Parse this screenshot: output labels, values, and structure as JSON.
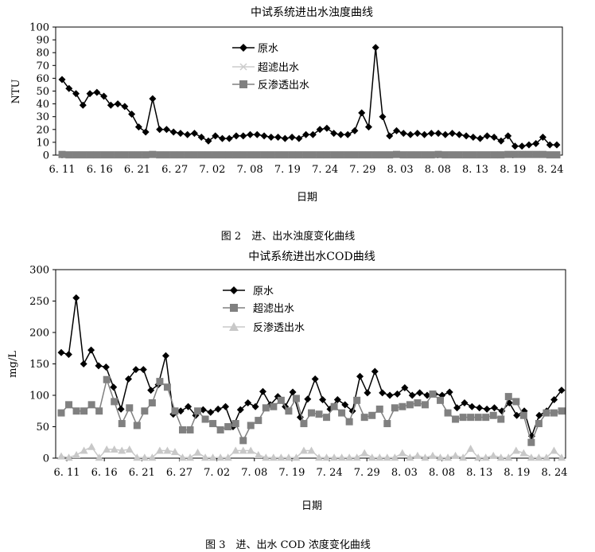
{
  "figure2": {
    "caption": "图 2　进、出水浊度变化曲线",
    "chart_data": {
      "type": "line",
      "title": "中试系统进出水浊度曲线",
      "xlabel": "日期",
      "ylabel": "NTU",
      "ylim": [
        0,
        100
      ],
      "yticks": [
        0,
        10,
        20,
        30,
        40,
        50,
        60,
        70,
        80,
        90,
        100
      ],
      "xtick_labels": [
        "6. 11",
        "6. 16",
        "6. 21",
        "6. 27",
        "7. 02",
        "7. 08",
        "7. 19",
        "7. 24",
        "7. 29",
        "8. 03",
        "8. 08",
        "8. 13",
        "8. 19",
        "8. 24"
      ],
      "legend_position": "top-left",
      "series": [
        {
          "name": "原水",
          "color": "#000000",
          "marker": "diamond",
          "values": [
            59,
            52,
            48,
            39,
            48,
            49,
            46,
            39,
            40,
            38,
            32,
            22,
            18,
            44,
            20,
            20,
            18,
            17,
            16,
            17,
            14,
            11,
            15,
            13,
            13,
            15,
            15,
            16,
            16,
            15,
            14,
            14,
            13,
            14,
            13,
            16,
            16,
            20,
            21,
            17,
            16,
            16,
            19,
            33,
            22,
            84,
            30,
            15,
            19,
            17,
            16,
            17,
            16,
            17,
            17,
            16,
            17,
            16,
            15,
            14,
            13,
            15,
            14,
            11,
            15,
            7,
            7,
            8,
            9,
            14,
            8,
            8
          ]
        },
        {
          "name": "超滤出水",
          "color": "#cccccc",
          "marker": "x",
          "values": [
            0.2,
            0.2,
            0.2,
            0.2,
            0.2,
            0.2,
            0.2,
            0.2,
            0.2,
            0.2,
            0.2,
            0.2,
            0.2,
            0.2,
            0.2,
            0.2,
            0.2,
            0.2,
            0.2,
            0.2,
            0.2,
            0.2,
            0.2,
            0.2,
            0.2,
            0.2,
            0.2,
            0.2,
            0.2,
            0.2,
            0.2,
            0.2,
            0.2,
            0.2,
            0.2,
            0.2,
            0.2,
            0.2,
            0.2,
            0.2,
            0.2,
            0.2,
            0.2,
            0.2,
            0.2,
            0.2,
            0.2,
            0.2,
            0.2,
            0.2,
            0.2,
            0.2,
            0.2,
            0.2,
            0.2,
            0.2,
            0.2,
            0.2,
            0.2,
            0.2,
            0.2,
            0.2,
            0.2,
            0.2,
            0.2,
            0.2,
            0.2,
            0.2,
            0.2,
            0.2,
            0.2,
            0.2
          ]
        },
        {
          "name": "反渗透出水",
          "color": "#808080",
          "marker": "square",
          "values": [
            0.5,
            0.2,
            0.2,
            0.2,
            0.2,
            0.2,
            0.2,
            0.2,
            0.2,
            0.2,
            0.2,
            0.2,
            0.2,
            0.5,
            0.2,
            0.2,
            0.2,
            0.2,
            0.2,
            0.2,
            0.2,
            0.2,
            0.2,
            0.2,
            0.2,
            0.2,
            0.2,
            0.2,
            0.2,
            0.2,
            0.2,
            0.2,
            0.2,
            0.2,
            0.2,
            0.2,
            0.2,
            0.2,
            0.2,
            0.2,
            0.2,
            0.2,
            0.2,
            0.2,
            0.2,
            0.2,
            0.2,
            0.2,
            0.5,
            0.2,
            0.2,
            0.2,
            0.2,
            0.2,
            0.5,
            0.2,
            0.2,
            0.2,
            0.2,
            0.2,
            0.2,
            0.2,
            0.2,
            0.2,
            0.5,
            0.5,
            0.5,
            0.5,
            0.5,
            0.5,
            0.2,
            0.2
          ]
        }
      ]
    }
  },
  "figure3": {
    "caption": "图 3　进、出水 COD 浓度变化曲线",
    "chart_data": {
      "type": "line",
      "title": "中试系统进出水COD曲线",
      "xlabel": "日期",
      "ylabel": "mg/L",
      "ylim": [
        0,
        300
      ],
      "yticks": [
        0,
        50,
        100,
        150,
        200,
        250,
        300
      ],
      "xtick_labels": [
        "6. 11",
        "6. 16",
        "6. 21",
        "6. 27",
        "7. 02",
        "7. 08",
        "7. 19",
        "7. 24",
        "7. 29",
        "8. 03",
        "8. 08",
        "8. 13",
        "8. 19",
        "8. 24"
      ],
      "legend_position": "top-left",
      "series": [
        {
          "name": "原水",
          "color": "#000000",
          "marker": "diamond",
          "values": [
            168,
            165,
            255,
            150,
            172,
            147,
            145,
            113,
            78,
            126,
            141,
            141,
            108,
            117,
            163,
            70,
            75,
            82,
            68,
            77,
            73,
            78,
            82,
            50,
            77,
            88,
            82,
            106,
            85,
            98,
            82,
            105,
            65,
            94,
            126,
            93,
            78,
            93,
            85,
            75,
            130,
            104,
            138,
            104,
            100,
            102,
            112,
            100,
            104,
            100,
            102,
            100,
            105,
            80,
            88,
            82,
            80,
            78,
            80,
            75,
            88,
            68,
            75,
            35,
            68,
            75,
            93,
            108
          ]
        },
        {
          "name": "超滤出水",
          "color": "#808080",
          "marker": "square",
          "values": [
            72,
            85,
            75,
            75,
            85,
            75,
            125,
            90,
            55,
            80,
            52,
            75,
            88,
            122,
            113,
            75,
            45,
            45,
            75,
            62,
            55,
            45,
            50,
            55,
            28,
            52,
            60,
            80,
            82,
            92,
            75,
            95,
            55,
            72,
            70,
            65,
            82,
            72,
            58,
            92,
            65,
            68,
            78,
            55,
            80,
            82,
            85,
            88,
            85,
            102,
            92,
            72,
            62,
            65,
            65,
            65,
            65,
            68,
            62,
            98,
            90,
            68,
            25,
            55,
            72,
            72,
            75
          ]
        },
        {
          "name": "反渗透出水",
          "color": "#c8c8c8",
          "marker": "triangle",
          "values": [
            3,
            1,
            5,
            12,
            18,
            1,
            14,
            14,
            12,
            14,
            1,
            1,
            1,
            12,
            12,
            10,
            1,
            1,
            9,
            1,
            1,
            1,
            1,
            12,
            12,
            12,
            5,
            1,
            1,
            1,
            1,
            1,
            12,
            12,
            1,
            1,
            1,
            1,
            1,
            1,
            8,
            1,
            1,
            1,
            1,
            8,
            1,
            4,
            1,
            4,
            1,
            1,
            4,
            1,
            15,
            1,
            1,
            4,
            1,
            1,
            12,
            8,
            1,
            1,
            1,
            12,
            1
          ]
        }
      ]
    }
  }
}
